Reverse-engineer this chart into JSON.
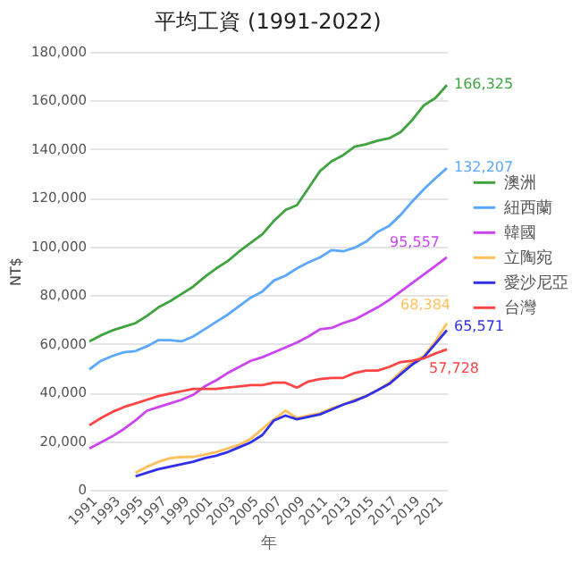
{
  "chart_data": {
    "type": "line",
    "title": "平均工資 (1991-2022)",
    "xlabel": "年",
    "ylabel": "NT$",
    "x": [
      1991,
      1992,
      1993,
      1994,
      1995,
      1996,
      1997,
      1998,
      1999,
      2000,
      2001,
      2002,
      2003,
      2004,
      2005,
      2006,
      2007,
      2008,
      2009,
      2010,
      2011,
      2012,
      2013,
      2014,
      2015,
      2016,
      2017,
      2018,
      2019,
      2020,
      2021,
      2022
    ],
    "series": [
      {
        "name": "澳洲",
        "color": "#3fa33f",
        "values": [
          61000,
          63500,
          65500,
          67000,
          68500,
          71500,
          75000,
          77500,
          80500,
          83500,
          87500,
          91000,
          94000,
          98000,
          101500,
          105000,
          110500,
          115000,
          117000,
          124000,
          131000,
          135000,
          137500,
          141000,
          142000,
          143500,
          144500,
          147000,
          152000,
          158000,
          161000,
          166325
        ],
        "value_labels": [
          null,
          null,
          null,
          null,
          null,
          null,
          null,
          null,
          null,
          null,
          null,
          null,
          null,
          null,
          null,
          null,
          null,
          null,
          null,
          null,
          null,
          null,
          null,
          null,
          null,
          null,
          null,
          null,
          null,
          null,
          null,
          "166,325"
        ]
      },
      {
        "name": "紐西蘭",
        "color": "#5aa8ff",
        "values": [
          49500,
          53000,
          55000,
          56500,
          57000,
          59000,
          61500,
          61500,
          61000,
          63000,
          66000,
          69000,
          72000,
          75500,
          79000,
          81500,
          86000,
          88000,
          91000,
          93500,
          95500,
          98500,
          98000,
          99500,
          102000,
          106000,
          108500,
          113000,
          118500,
          123500,
          128000,
          132207
        ],
        "value_labels": [
          null,
          null,
          null,
          null,
          null,
          null,
          null,
          null,
          null,
          null,
          null,
          null,
          null,
          null,
          null,
          null,
          null,
          null,
          null,
          null,
          null,
          null,
          null,
          null,
          null,
          null,
          null,
          null,
          null,
          null,
          null,
          "132,207"
        ]
      },
      {
        "name": "韓國",
        "color": "#cc44f0",
        "values": [
          17000,
          19500,
          22000,
          25000,
          28500,
          32500,
          34000,
          35500,
          37000,
          39000,
          42500,
          45000,
          48000,
          50500,
          53000,
          54500,
          56500,
          58500,
          60500,
          63000,
          66000,
          66500,
          68500,
          70000,
          72500,
          75000,
          78000,
          81500,
          85000,
          88500,
          92000,
          95557
        ],
        "value_labels": [
          null,
          null,
          null,
          null,
          null,
          null,
          null,
          null,
          null,
          null,
          null,
          null,
          null,
          null,
          null,
          null,
          null,
          null,
          null,
          null,
          null,
          null,
          null,
          null,
          null,
          null,
          null,
          null,
          null,
          null,
          null,
          "95,557"
        ]
      },
      {
        "name": "立陶宛",
        "color": "#ffbf5a",
        "values": [
          null,
          null,
          null,
          null,
          7000,
          9500,
          11500,
          13000,
          13500,
          13500,
          14500,
          15500,
          17000,
          18500,
          21000,
          25000,
          29000,
          32500,
          29500,
          30500,
          31500,
          33500,
          35000,
          37000,
          38500,
          41000,
          44000,
          48500,
          52500,
          55000,
          61000,
          68384
        ],
        "value_labels": [
          null,
          null,
          null,
          null,
          null,
          null,
          null,
          null,
          null,
          null,
          null,
          null,
          null,
          null,
          null,
          null,
          null,
          null,
          null,
          null,
          null,
          null,
          null,
          null,
          null,
          null,
          null,
          null,
          null,
          null,
          null,
          "68,384"
        ]
      },
      {
        "name": "愛沙尼亞",
        "color": "#3030e8",
        "values": [
          null,
          null,
          null,
          null,
          5500,
          7000,
          8500,
          9500,
          10500,
          11500,
          13000,
          14000,
          15500,
          17500,
          19500,
          22500,
          28500,
          30500,
          29000,
          30000,
          31000,
          33000,
          35000,
          36500,
          38500,
          41000,
          43500,
          47500,
          51500,
          54500,
          60000,
          65571
        ],
        "value_labels": [
          null,
          null,
          null,
          null,
          null,
          null,
          null,
          null,
          null,
          null,
          null,
          null,
          null,
          null,
          null,
          null,
          null,
          null,
          null,
          null,
          null,
          null,
          null,
          null,
          null,
          null,
          null,
          null,
          null,
          null,
          null,
          "65,571"
        ]
      },
      {
        "name": "台灣",
        "color": "#ff4444",
        "values": [
          26500,
          29500,
          32000,
          34000,
          35500,
          37000,
          38500,
          39500,
          40500,
          41500,
          41500,
          41500,
          42000,
          42500,
          43000,
          43000,
          44000,
          44000,
          42000,
          44500,
          45500,
          46000,
          46000,
          48000,
          49000,
          49000,
          50500,
          52500,
          53000,
          54000,
          56000,
          57728
        ],
        "value_labels": [
          null,
          null,
          null,
          null,
          null,
          null,
          null,
          null,
          null,
          null,
          null,
          null,
          null,
          null,
          null,
          null,
          null,
          null,
          null,
          null,
          null,
          null,
          null,
          null,
          null,
          null,
          null,
          null,
          null,
          null,
          null,
          "57,728"
        ]
      }
    ],
    "xlim": [
      1991,
      2022
    ],
    "xticks": [
      1991,
      1993,
      1995,
      1997,
      1999,
      2001,
      2003,
      2005,
      2007,
      2009,
      2011,
      2013,
      2015,
      2017,
      2019,
      2021
    ],
    "ylim": [
      0,
      180000
    ],
    "yticks": [
      0,
      {
        "value": 20000,
        "label": "20,000"
      },
      {
        "value": 40000,
        "label": "40,000"
      },
      {
        "value": 60000,
        "label": "60,000"
      },
      {
        "value": 80000,
        "label": "80,000"
      },
      {
        "value": 100000,
        "label": "100,000"
      },
      {
        "value": 120000,
        "label": "120,000"
      },
      {
        "value": 140000,
        "label": "140,000"
      },
      {
        "value": 160000,
        "label": "160,000"
      },
      {
        "value": 180000,
        "label": "180,000"
      }
    ],
    "grid": "y",
    "legend": "right",
    "line_style": "solid",
    "marker": "none"
  }
}
